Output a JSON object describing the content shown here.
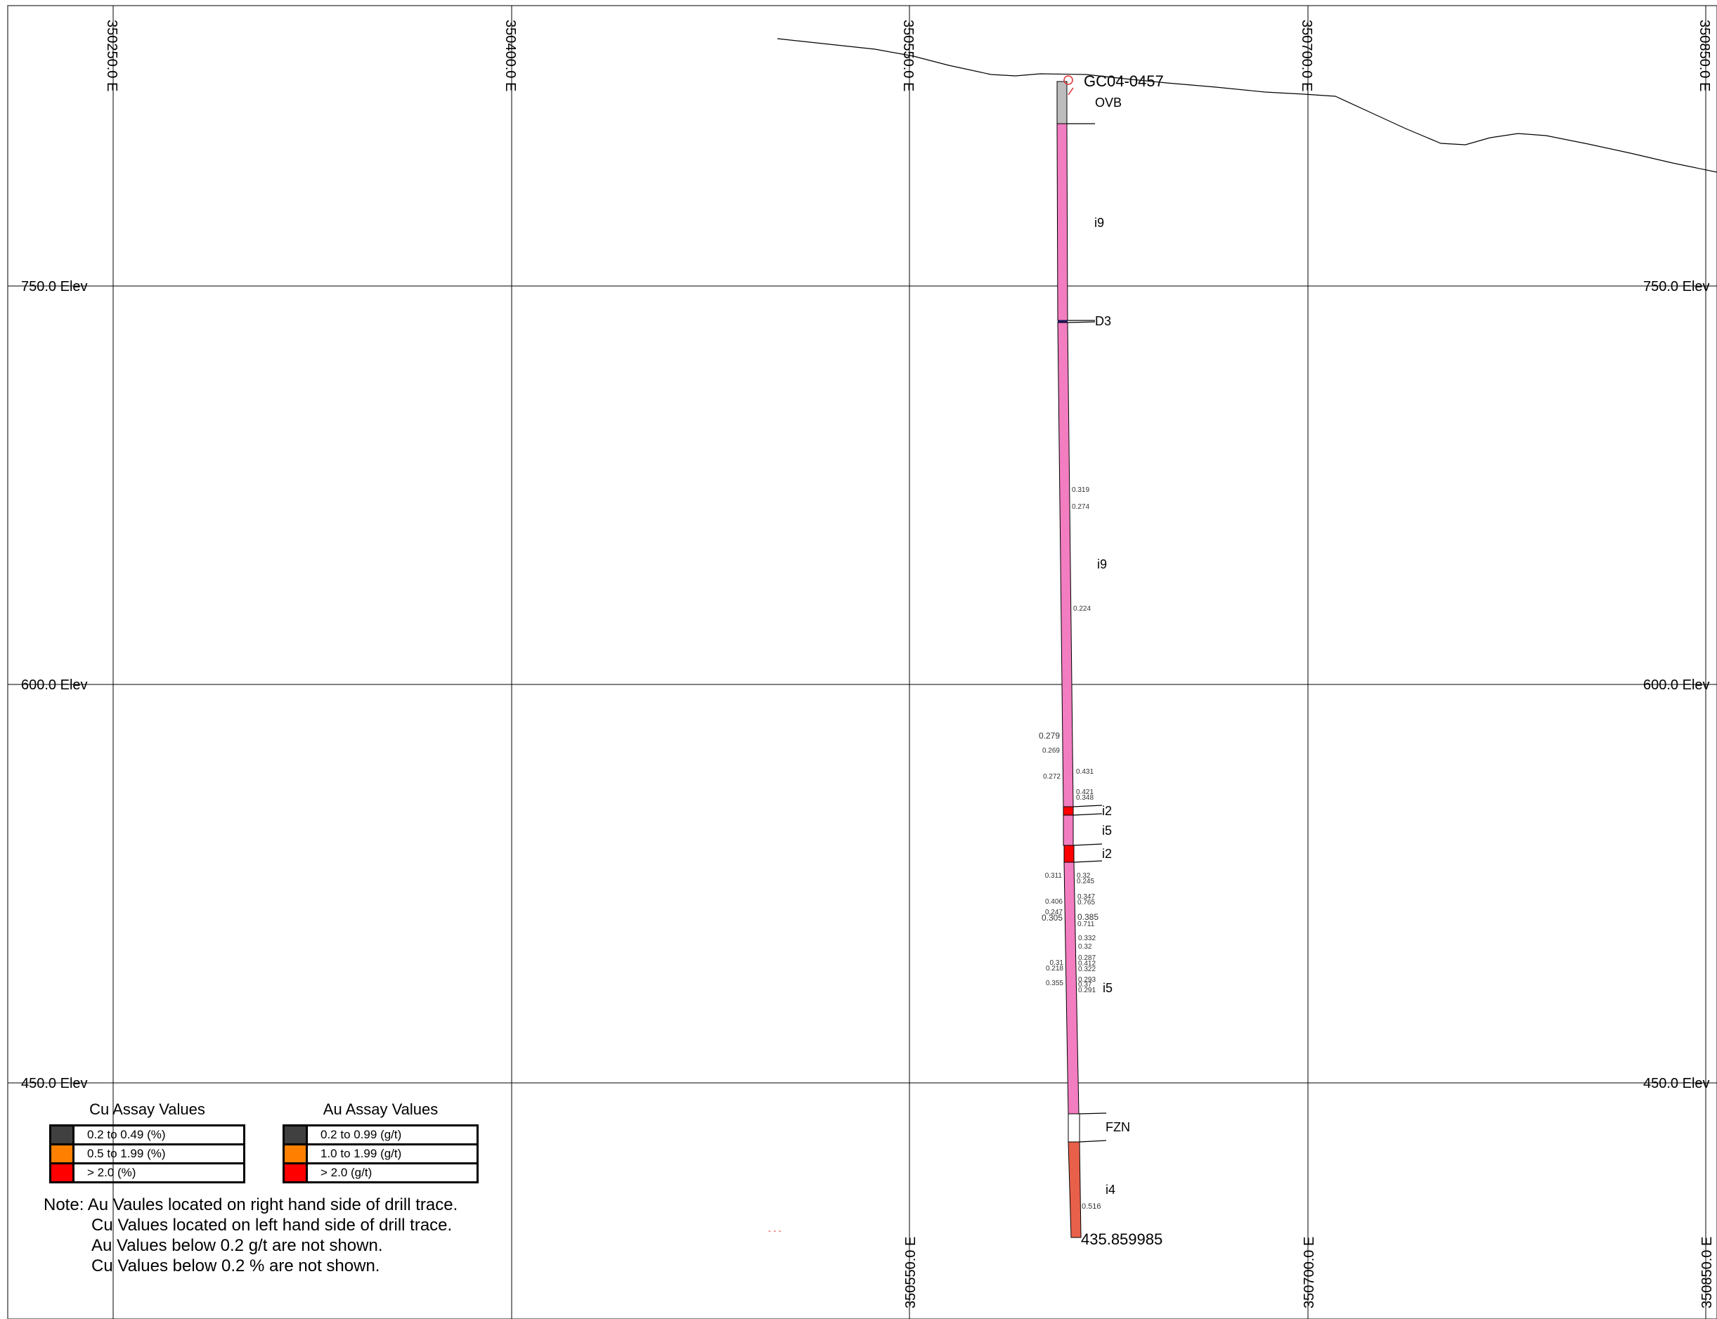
{
  "eastings": [
    "350250.0 E",
    "350400.0 E",
    "350550.0 E",
    "350700.0 E",
    "350850.0 E"
  ],
  "elevations": [
    "750.0 Elev",
    "600.0 Elev",
    "450.0 Elev"
  ],
  "hole_id": "GC04-0457",
  "end_depth": "435.859985",
  "lithology": [
    "OVB",
    "i9",
    "D3",
    "i9",
    "i2",
    "i5",
    "i2",
    "i5",
    "FZN",
    "i4"
  ],
  "au_values": [
    "0.319",
    "0.274",
    "0.224",
    "0.431",
    "0.421",
    "0.348",
    "0.32",
    "0.245",
    "0.347",
    "0.765",
    "0.385",
    "0.711",
    "0.332",
    "0.32",
    "0.287",
    "0.412",
    "0.322",
    "0.293",
    "0.37",
    "0.291",
    "0.516"
  ],
  "cu_values": [
    "0.279",
    "0.269",
    "0.272",
    "0.311",
    "0.406",
    "0.247",
    "0.305",
    "0.31",
    "0.218",
    "0.355"
  ],
  "legend_cu": {
    "title": "Cu Assay Values",
    "items": [
      {
        "label": "0.2 to 0.49 (%)",
        "color": "#404040"
      },
      {
        "label": "0.5 to 1.99 (%)",
        "color": "#ff8000"
      },
      {
        "label": "> 2.0 (%)",
        "color": "#ff0000"
      }
    ]
  },
  "legend_au": {
    "title": "Au Assay Values",
    "items": [
      {
        "label": "0.2 to 0.99 (g/t)",
        "color": "#404040"
      },
      {
        "label": "1.0 to 1.99 (g/t)",
        "color": "#ff8000"
      },
      {
        "label": "> 2.0 (g/t)",
        "color": "#ff0000"
      }
    ]
  },
  "notes": [
    "Note: Au Vaules located on right hand side of drill trace.",
    "Cu Values located on left hand side of drill trace.",
    "Au Values below 0.2 g/t are not shown.",
    "Cu Values below 0.2 % are not shown."
  ],
  "colors": {
    "i9": "#f27dc0",
    "i5": "#f27dc0",
    "i4": "#e8604a",
    "ovb": "#bdbdbd",
    "i2": "#ff0000",
    "fzn": "#ffffff"
  }
}
